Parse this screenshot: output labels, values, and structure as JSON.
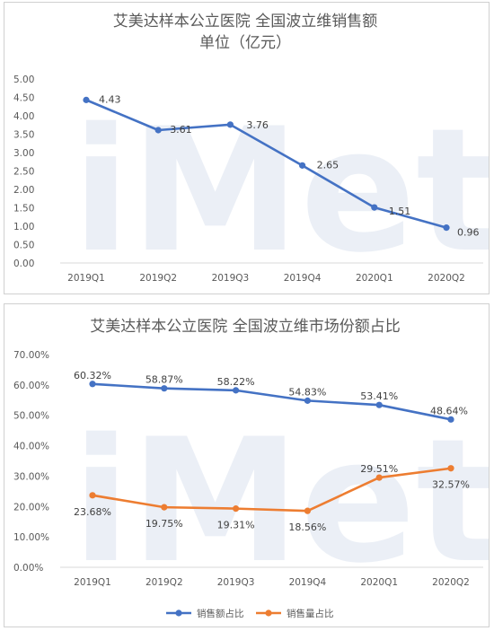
{
  "watermark": "iMeta",
  "chart_data": [
    {
      "type": "line",
      "title_lines": [
        "艾美达样本公立医院 全国波立维销售额",
        "单位（亿元）"
      ],
      "categories": [
        "2019Q1",
        "2019Q2",
        "2019Q3",
        "2019Q4",
        "2020Q1",
        "2020Q2"
      ],
      "y_ticks": [
        "0.00",
        "0.50",
        "1.00",
        "1.50",
        "2.00",
        "2.50",
        "3.00",
        "3.50",
        "4.00",
        "4.50",
        "5.00"
      ],
      "ylim": [
        0,
        5
      ],
      "grid": false,
      "series": [
        {
          "values": [
            4.43,
            3.61,
            3.76,
            2.65,
            1.51,
            0.96
          ],
          "labels": [
            "4.43",
            "3.61",
            "3.76",
            "2.65",
            "1.51",
            "0.96"
          ],
          "color": "#4472c4"
        }
      ]
    },
    {
      "type": "line",
      "title_lines": [
        "艾美达样本公立医院 全国波立维市场份额占比"
      ],
      "categories": [
        "2019Q1",
        "2019Q2",
        "2019Q3",
        "2019Q4",
        "2020Q1",
        "2020Q2"
      ],
      "y_ticks": [
        "0.00%",
        "10.00%",
        "20.00%",
        "30.00%",
        "40.00%",
        "50.00%",
        "60.00%",
        "70.00%"
      ],
      "ylim": [
        0,
        70
      ],
      "grid": false,
      "legend_position": "bottom",
      "series": [
        {
          "name": "销售额占比",
          "values": [
            60.32,
            58.87,
            58.22,
            54.83,
            53.41,
            48.64
          ],
          "labels": [
            "60.32%",
            "58.87%",
            "58.22%",
            "54.83%",
            "53.41%",
            "48.64%"
          ],
          "color": "#4472c4"
        },
        {
          "name": "销售量占比",
          "values": [
            23.68,
            19.75,
            19.31,
            18.56,
            29.51,
            32.57
          ],
          "labels": [
            "23.68%",
            "19.75%",
            "19.31%",
            "18.56%",
            "29.51%",
            "32.57%"
          ],
          "color": "#ed7d31"
        }
      ]
    }
  ]
}
